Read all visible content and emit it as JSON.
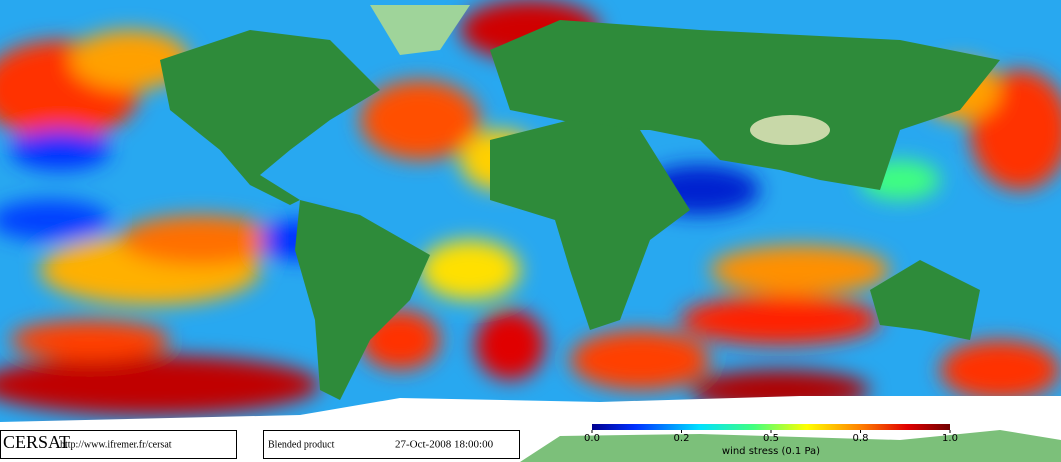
{
  "footer": {
    "logo": "CERSAT",
    "url": "http://www.ifremer.fr/cersat",
    "product": "Blended product",
    "date": "27-Oct-2008 18:00:00"
  },
  "colorbar": {
    "ticks": [
      {
        "value": 0,
        "label": "0.0"
      },
      0.2,
      0.5,
      0.8,
      {
        "value": 1,
        "label": "1.0"
      }
    ],
    "title": "wind stress (0.1 Pa)"
  }
}
